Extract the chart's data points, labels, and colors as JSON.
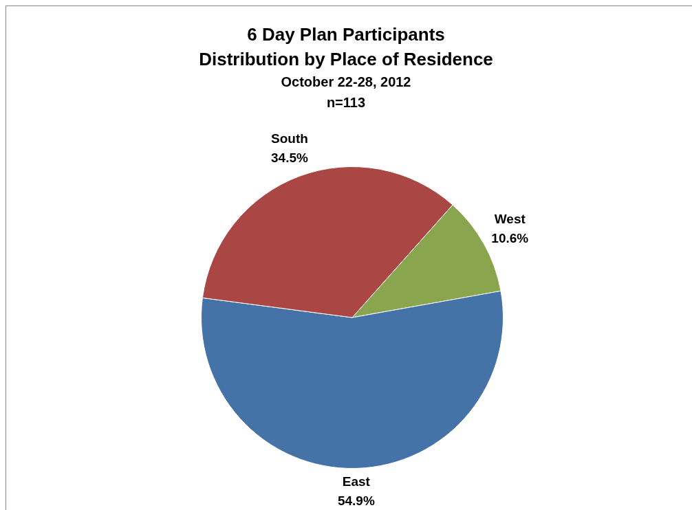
{
  "chart_data": {
    "type": "pie",
    "title": "6 Day Plan Participants\nDistribution by Place of Residence",
    "subtitle": "October 22-28, 2012\nn=113",
    "categories": [
      "West",
      "East",
      "South"
    ],
    "values": [
      10.6,
      54.9,
      34.5
    ],
    "colors": [
      "#89a54e",
      "#4572a7",
      "#aa4643"
    ],
    "value_labels": [
      "10.6%",
      "54.9%",
      "34.5%"
    ],
    "legend": false
  }
}
